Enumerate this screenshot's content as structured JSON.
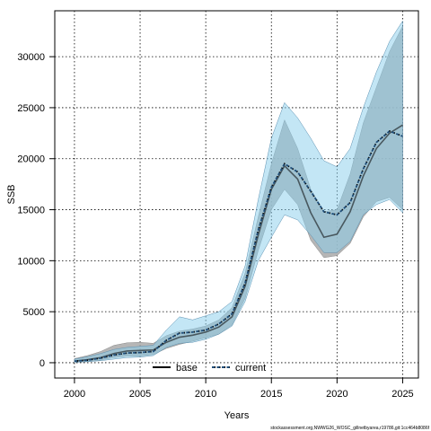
{
  "chart_data": {
    "type": "area",
    "xlabel": "Years",
    "ylabel": "SSB",
    "xlim": [
      1998.5,
      2026.2
    ],
    "ylim": [
      -1500,
      34500
    ],
    "x_ticks": [
      2000,
      2005,
      2010,
      2015,
      2020,
      2025
    ],
    "y_ticks": [
      0,
      5000,
      10000,
      15000,
      20000,
      25000,
      30000
    ],
    "grid": true,
    "legend_position": "bottom-center",
    "x": [
      2000,
      2001,
      2002,
      2003,
      2004,
      2005,
      2006,
      2007,
      2008,
      2009,
      2010,
      2011,
      2012,
      2013,
      2014,
      2015,
      2016,
      2017,
      2018,
      2019,
      2020,
      2021,
      2022,
      2023,
      2024,
      2025
    ],
    "series": [
      {
        "name": "base",
        "color": "#000000",
        "band_color": "#a9a9a9",
        "values": [
          150,
          300,
          500,
          900,
          1150,
          1200,
          1250,
          2000,
          2500,
          2700,
          3000,
          3500,
          4500,
          7500,
          12500,
          17000,
          19300,
          18000,
          14700,
          12300,
          12600,
          14800,
          18300,
          21000,
          22500,
          23300
        ],
        "lower": [
          50,
          100,
          250,
          500,
          650,
          650,
          800,
          1400,
          1800,
          2100,
          2450,
          2800,
          3700,
          6300,
          11000,
          15000,
          17000,
          15500,
          12000,
          10300,
          10500,
          11700,
          14300,
          15800,
          16200,
          15000
        ],
        "upper": [
          400,
          700,
          1100,
          1700,
          1950,
          2000,
          1900,
          2650,
          3100,
          3300,
          3600,
          4200,
          5400,
          8800,
          14300,
          19500,
          23800,
          21000,
          17000,
          14800,
          15000,
          18500,
          23500,
          27000,
          30500,
          33000
        ]
      },
      {
        "name": "current",
        "color": "#1f4e79",
        "band_color": "#87ceeb",
        "values": [
          150,
          250,
          450,
          750,
          950,
          1000,
          1100,
          2200,
          2900,
          3000,
          3200,
          3800,
          4800,
          7800,
          13000,
          17200,
          19500,
          18700,
          16800,
          14800,
          14500,
          15700,
          19000,
          21600,
          22700,
          22200
        ],
        "lower": [
          50,
          100,
          200,
          350,
          500,
          550,
          700,
          1500,
          1900,
          2000,
          2300,
          2800,
          3600,
          6000,
          10000,
          12300,
          14500,
          14000,
          12500,
          10800,
          10800,
          11900,
          14500,
          15500,
          16000,
          14700
        ],
        "upper": [
          350,
          600,
          900,
          1300,
          1500,
          1600,
          1700,
          3200,
          4500,
          4200,
          4600,
          5000,
          6000,
          9500,
          16000,
          22000,
          25500,
          24000,
          22000,
          19800,
          19200,
          21000,
          25000,
          28500,
          31500,
          33500
        ]
      }
    ]
  },
  "footer_text": "stockassessment.org,NWWG26_WOSC_gillnetbyarea,r19786,git:1cc464b8086f"
}
